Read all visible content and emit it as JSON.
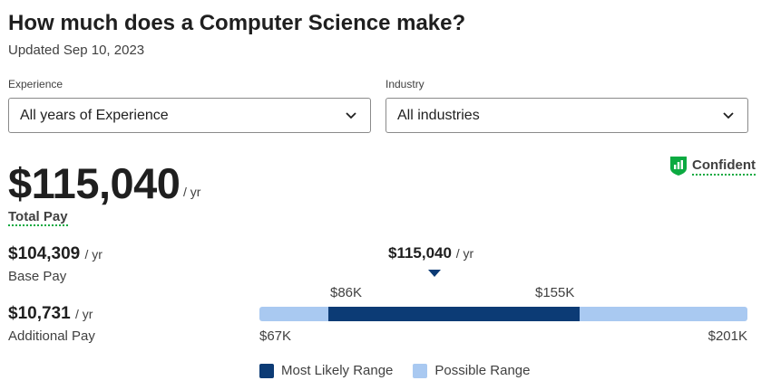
{
  "header": {
    "title": "How much does a Computer Science make?",
    "updated": "Updated Sep 10, 2023"
  },
  "filters": {
    "experience": {
      "label": "Experience",
      "value": "All years of Experience",
      "icon": "chevron-down-icon"
    },
    "industry": {
      "label": "Industry",
      "value": "All industries",
      "icon": "chevron-down-icon"
    }
  },
  "total_pay": {
    "amount": "$115,040",
    "per": "/ yr",
    "label": "Total Pay"
  },
  "confidence": {
    "label": "Confident",
    "icon": "shield-bar-chart-icon",
    "color": "#0caa41"
  },
  "base_pay": {
    "amount": "$104,309",
    "per": "/ yr",
    "label": "Base Pay"
  },
  "additional_pay": {
    "amount": "$10,731",
    "per": "/ yr",
    "label": "Additional Pay"
  },
  "range": {
    "marker_value": "$115,040",
    "marker_per": "/ yr",
    "likely_low_label": "$86K",
    "likely_high_label": "$155K",
    "min_label": "$67K",
    "max_label": "$201K",
    "min": 67000,
    "max": 201000,
    "likely_low": 86000,
    "likely_high": 155000,
    "marker": 115040,
    "likely_color": "#0c3b75",
    "possible_color": "#a9c9f1"
  },
  "legend": {
    "likely": "Most Likely Range",
    "possible": "Possible Range"
  }
}
